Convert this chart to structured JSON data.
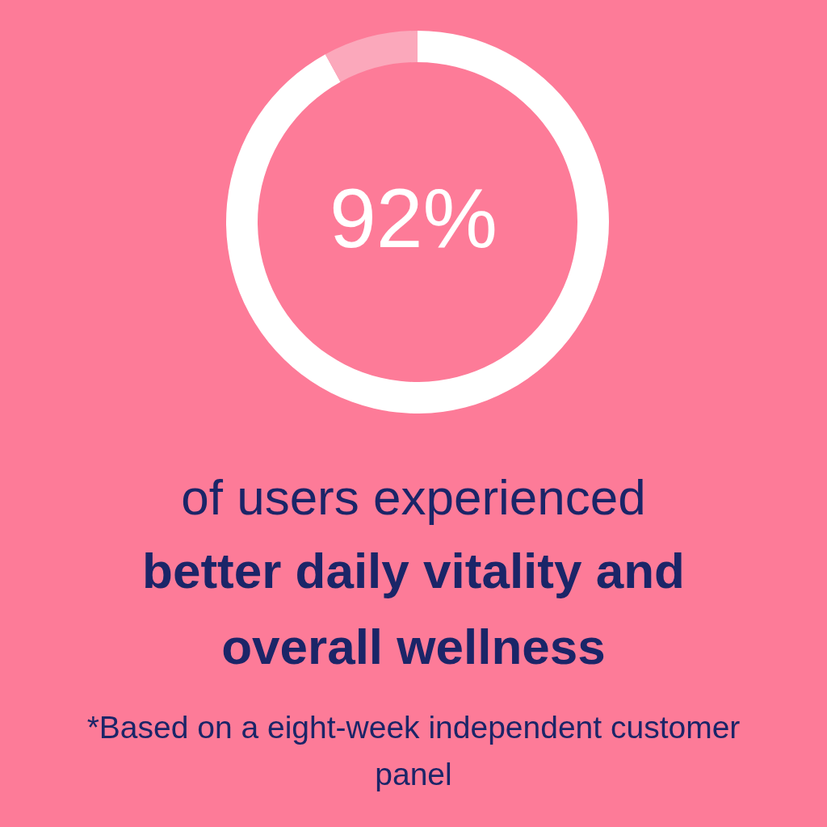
{
  "chart_data": {
    "type": "donut",
    "categories": [
      null,
      null
    ],
    "values": [
      92,
      8
    ],
    "colors": [
      "#ffffff",
      "#fba8bb"
    ],
    "value_labels": [
      "92%",
      null
    ],
    "annotations": [
      "of users experienced",
      "better daily vitality and overall wellness",
      "*Based on a eight-week independent customer panel"
    ]
  }
}
